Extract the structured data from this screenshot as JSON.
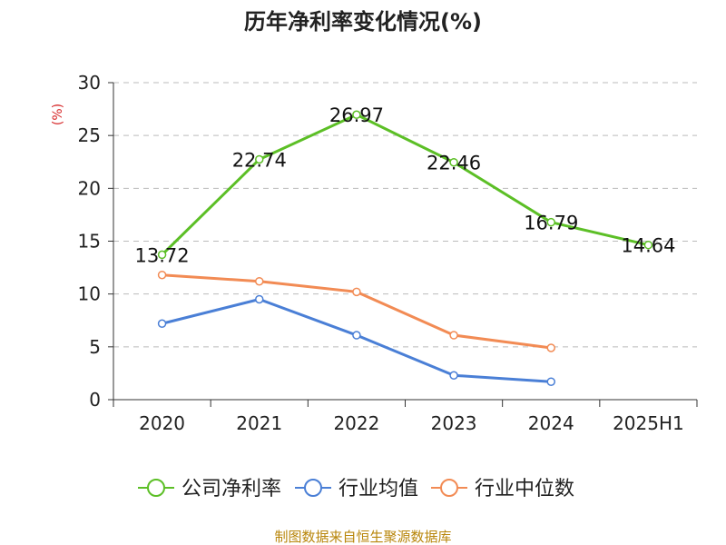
{
  "chart_data": {
    "type": "line",
    "title": "历年净利率变化情况(%)",
    "ylabel": "(%)",
    "categories": [
      "2020",
      "2021",
      "2022",
      "2023",
      "2024",
      "2025H1"
    ],
    "ylim": [
      0,
      30
    ],
    "yticks": [
      "0",
      "5",
      "10",
      "15",
      "20",
      "25",
      "30"
    ],
    "grid": true,
    "legend_position": "bottom",
    "series": [
      {
        "name": "公司净利率",
        "color": "#5cbf26",
        "values": [
          13.72,
          22.74,
          26.97,
          22.46,
          16.79,
          14.64
        ],
        "labels": [
          "13.72",
          "22.74",
          "26.97",
          "22.46",
          "16.79",
          "14.64"
        ]
      },
      {
        "name": "行业均值",
        "color": "#4a7fd6",
        "values": [
          7.2,
          9.5,
          6.1,
          2.3,
          1.7,
          null
        ]
      },
      {
        "name": "行业中位数",
        "color": "#f28b54",
        "values": [
          11.8,
          11.2,
          10.2,
          6.1,
          4.9,
          null
        ]
      }
    ],
    "source": "制图数据来自恒生聚源数据库"
  }
}
